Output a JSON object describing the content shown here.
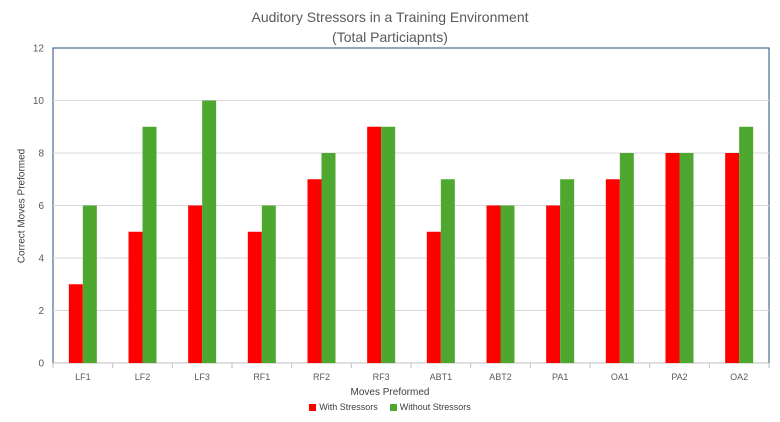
{
  "chart_data": {
    "type": "bar",
    "title": "Auditory Stressors in a Training Environment",
    "subtitle": "(Total Particiapnts)",
    "xlabel": "Moves Preformed",
    "ylabel": "Correct Moves Preformed",
    "categories": [
      "LF1",
      "LF2",
      "LF3",
      "RF1",
      "RF2",
      "RF3",
      "ABT1",
      "ABT2",
      "PA1",
      "OA1",
      "PA2",
      "OA2"
    ],
    "series": [
      {
        "name": "With Stressors",
        "color": "#ff0000",
        "values": [
          3,
          5,
          6,
          5,
          7,
          9,
          5,
          6,
          6,
          7,
          8,
          8
        ]
      },
      {
        "name": "Without Stressors",
        "color": "#4ea72e",
        "values": [
          6,
          9,
          10,
          6,
          8,
          9,
          7,
          6,
          7,
          8,
          8,
          9
        ]
      }
    ],
    "ylim": [
      0,
      12
    ],
    "yticks": [
      "0",
      "2",
      "4",
      "6",
      "8",
      "10",
      "12"
    ],
    "grid": true,
    "legend_position": "bottom",
    "colors": {
      "gridline": "#d9d9d9",
      "axis": "#bfbfbf",
      "border": "#1f4e79"
    }
  }
}
